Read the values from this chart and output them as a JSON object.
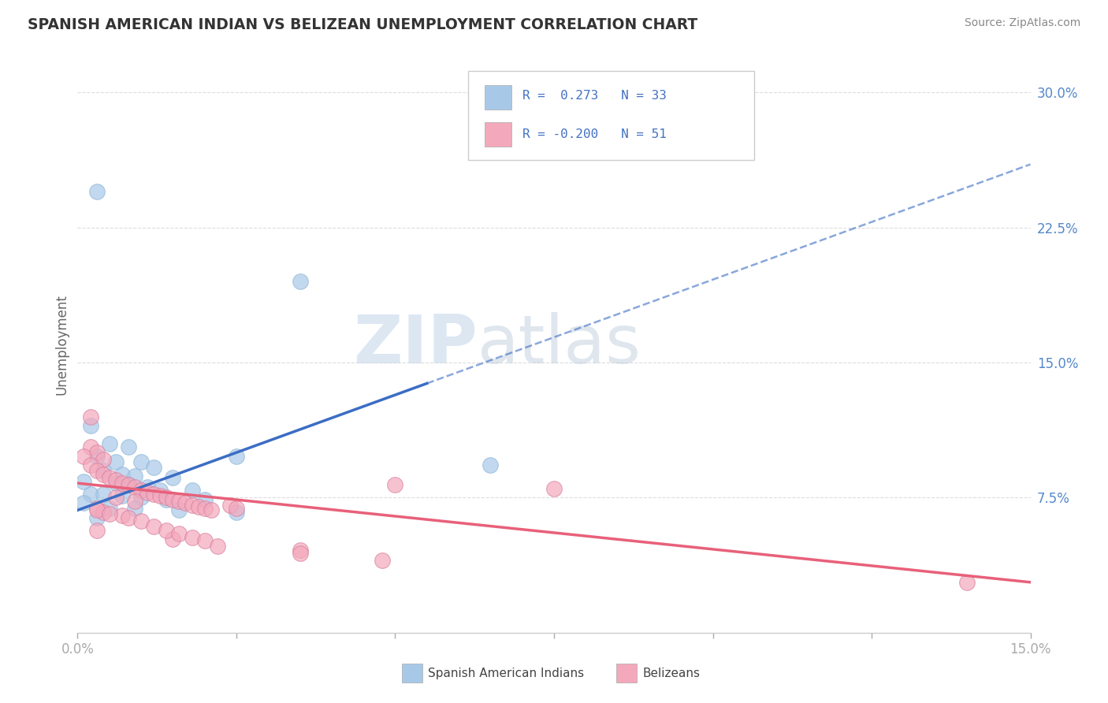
{
  "title": "SPANISH AMERICAN INDIAN VS BELIZEAN UNEMPLOYMENT CORRELATION CHART",
  "source": "Source: ZipAtlas.com",
  "ylabel": "Unemployment",
  "watermark": "ZIPatlas",
  "xlim": [
    0.0,
    0.15
  ],
  "ylim": [
    0.0,
    0.32
  ],
  "yticks": [
    0.075,
    0.15,
    0.225,
    0.3
  ],
  "ytick_labels": [
    "7.5%",
    "15.0%",
    "22.5%",
    "30.0%"
  ],
  "xticks": [
    0.0,
    0.025,
    0.05,
    0.075,
    0.1,
    0.125,
    0.15
  ],
  "xtick_labels": [
    "0.0%",
    "",
    "",
    "",
    "",
    "",
    "15.0%"
  ],
  "blue_color": "#A8C8E8",
  "pink_color": "#F4A8BC",
  "blue_line_color": "#3B6DC4",
  "pink_line_color": "#E8607A",
  "blue_scatter": [
    [
      0.003,
      0.245
    ],
    [
      0.035,
      0.195
    ],
    [
      0.002,
      0.115
    ],
    [
      0.005,
      0.105
    ],
    [
      0.008,
      0.103
    ],
    [
      0.003,
      0.098
    ],
    [
      0.006,
      0.095
    ],
    [
      0.01,
      0.095
    ],
    [
      0.012,
      0.092
    ],
    [
      0.004,
      0.09
    ],
    [
      0.007,
      0.088
    ],
    [
      0.009,
      0.087
    ],
    [
      0.015,
      0.086
    ],
    [
      0.001,
      0.084
    ],
    [
      0.006,
      0.083
    ],
    [
      0.008,
      0.082
    ],
    [
      0.011,
      0.081
    ],
    [
      0.013,
      0.079
    ],
    [
      0.018,
      0.079
    ],
    [
      0.002,
      0.077
    ],
    [
      0.004,
      0.077
    ],
    [
      0.007,
      0.076
    ],
    [
      0.01,
      0.075
    ],
    [
      0.014,
      0.074
    ],
    [
      0.02,
      0.074
    ],
    [
      0.001,
      0.072
    ],
    [
      0.005,
      0.069
    ],
    [
      0.009,
      0.069
    ],
    [
      0.016,
      0.068
    ],
    [
      0.025,
      0.067
    ],
    [
      0.003,
      0.064
    ],
    [
      0.025,
      0.098
    ],
    [
      0.065,
      0.093
    ]
  ],
  "pink_scatter": [
    [
      0.002,
      0.12
    ],
    [
      0.002,
      0.103
    ],
    [
      0.003,
      0.1
    ],
    [
      0.001,
      0.098
    ],
    [
      0.004,
      0.096
    ],
    [
      0.002,
      0.093
    ],
    [
      0.003,
      0.09
    ],
    [
      0.004,
      0.088
    ],
    [
      0.005,
      0.086
    ],
    [
      0.006,
      0.085
    ],
    [
      0.007,
      0.083
    ],
    [
      0.008,
      0.082
    ],
    [
      0.009,
      0.081
    ],
    [
      0.01,
      0.079
    ],
    [
      0.011,
      0.078
    ],
    [
      0.012,
      0.077
    ],
    [
      0.013,
      0.076
    ],
    [
      0.014,
      0.075
    ],
    [
      0.015,
      0.074
    ],
    [
      0.016,
      0.073
    ],
    [
      0.017,
      0.072
    ],
    [
      0.018,
      0.071
    ],
    [
      0.019,
      0.07
    ],
    [
      0.02,
      0.069
    ],
    [
      0.021,
      0.068
    ],
    [
      0.006,
      0.075
    ],
    [
      0.009,
      0.073
    ],
    [
      0.003,
      0.069
    ],
    [
      0.004,
      0.067
    ],
    [
      0.007,
      0.065
    ],
    [
      0.024,
      0.071
    ],
    [
      0.025,
      0.069
    ],
    [
      0.05,
      0.082
    ],
    [
      0.075,
      0.08
    ],
    [
      0.003,
      0.057
    ],
    [
      0.015,
      0.052
    ],
    [
      0.035,
      0.046
    ],
    [
      0.048,
      0.04
    ],
    [
      0.003,
      0.068
    ],
    [
      0.005,
      0.066
    ],
    [
      0.008,
      0.064
    ],
    [
      0.01,
      0.062
    ],
    [
      0.012,
      0.059
    ],
    [
      0.014,
      0.057
    ],
    [
      0.016,
      0.055
    ],
    [
      0.018,
      0.053
    ],
    [
      0.02,
      0.051
    ],
    [
      0.022,
      0.048
    ],
    [
      0.035,
      0.044
    ],
    [
      0.14,
      0.028
    ]
  ],
  "bg_color": "#FFFFFF",
  "grid_color": "#DDDDDD",
  "grid_style": "--"
}
